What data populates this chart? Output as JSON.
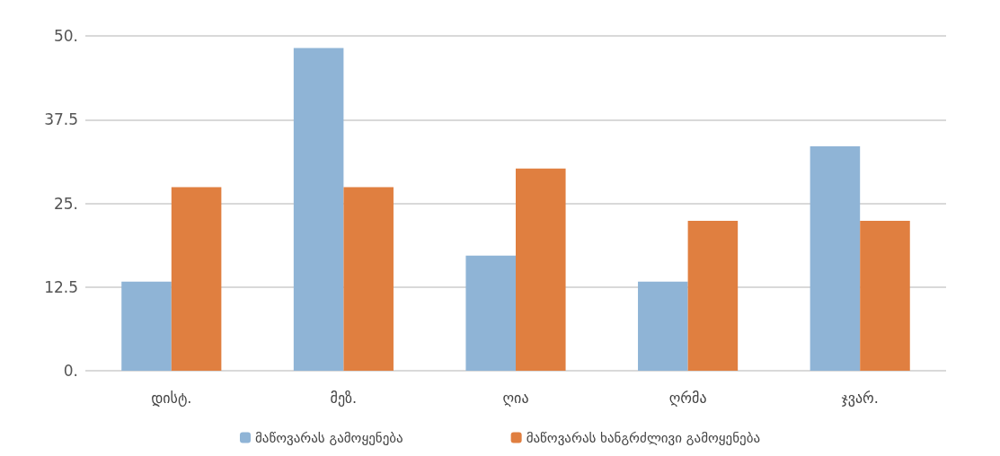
{
  "chart_data": {
    "type": "bar",
    "categories": [
      "დისტ.",
      "მეზ.",
      "ღია",
      "ღრმა",
      "ჯვარ."
    ],
    "series": [
      {
        "name": "მაწოვარას გამოყენება",
        "color": "#8fb4d6",
        "values": [
          13.3,
          48.2,
          17.2,
          13.3,
          33.5
        ]
      },
      {
        "name": "მაწოვარას ხანგრძლივი გამოყენება",
        "color": "#e07f40",
        "values": [
          27.4,
          27.4,
          30.2,
          22.4,
          22.4
        ]
      }
    ],
    "ylim": [
      0,
      50
    ],
    "yticks": [
      {
        "value": 0,
        "label": "0."
      },
      12.5,
      {
        "value": 25,
        "label": "25."
      },
      37.5,
      {
        "value": 50,
        "label": "50."
      }
    ],
    "grid": "y",
    "legend": "bottom"
  }
}
